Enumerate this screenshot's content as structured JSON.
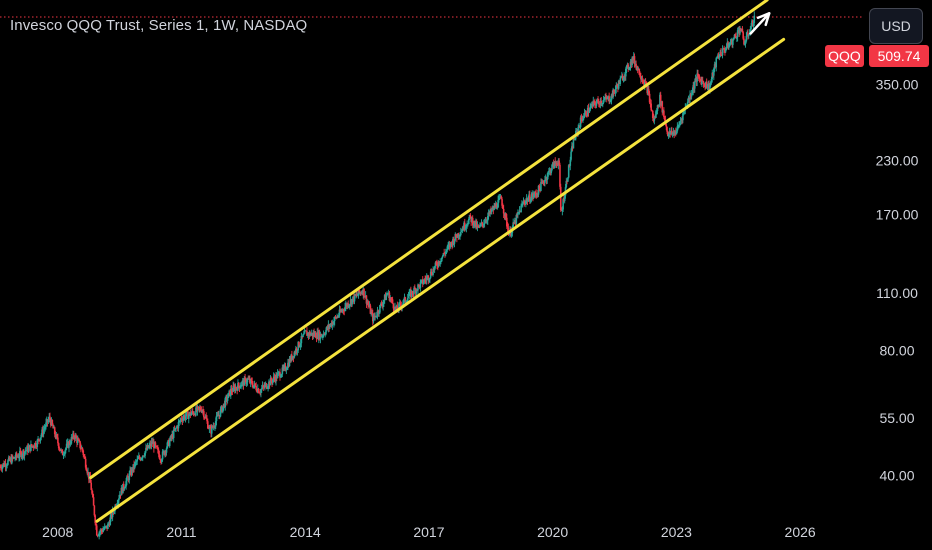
{
  "header": {
    "title": "Invesco QQQ Trust, Series 1, 1W, NASDAQ",
    "currency_button": "USD"
  },
  "price_badges": {
    "ticker": "QQQ",
    "last_price": "509.74"
  },
  "colors": {
    "background": "#000000",
    "up": "#26a69a",
    "down": "#f23645",
    "channel_lines": "#f5e33d",
    "axis_text": "#d1d4dc",
    "price_line": "#f23645",
    "arrow": "#ffffff"
  },
  "chart_data": {
    "type": "candlestick",
    "title": "Invesco QQQ Trust, Series 1, 1W, NASDAQ",
    "y_scale": "log",
    "ylim": [
      33,
      560
    ],
    "xlim": [
      2006.6,
      2027.5
    ],
    "y_ticks": [
      "350.00",
      "230.00",
      "170.00",
      "110.00",
      "80.00",
      "55.00",
      "40.00"
    ],
    "y_tick_values": [
      350,
      230,
      170,
      110,
      80,
      55,
      40
    ],
    "x_ticks": [
      "2008",
      "2011",
      "2014",
      "2017",
      "2020",
      "2023",
      "2026"
    ],
    "x_tick_values": [
      2008,
      2011,
      2014,
      2017,
      2020,
      2023,
      2026
    ],
    "grid": false,
    "last_price": 509.74,
    "price_path": [
      [
        2006.6,
        42
      ],
      [
        2007.1,
        45
      ],
      [
        2007.5,
        48
      ],
      [
        2007.8,
        55
      ],
      [
        2008.1,
        45
      ],
      [
        2008.4,
        50
      ],
      [
        2008.6,
        46
      ],
      [
        2008.8,
        38
      ],
      [
        2008.95,
        29
      ],
      [
        2009.2,
        30
      ],
      [
        2009.5,
        36
      ],
      [
        2009.9,
        43
      ],
      [
        2010.3,
        48
      ],
      [
        2010.5,
        44
      ],
      [
        2011.0,
        55
      ],
      [
        2011.5,
        58
      ],
      [
        2011.7,
        51
      ],
      [
        2012.2,
        64
      ],
      [
        2012.6,
        68
      ],
      [
        2012.9,
        64
      ],
      [
        2013.5,
        72
      ],
      [
        2014.0,
        88
      ],
      [
        2014.4,
        87
      ],
      [
        2015.0,
        103
      ],
      [
        2015.4,
        112
      ],
      [
        2015.65,
        95
      ],
      [
        2016.0,
        110
      ],
      [
        2016.2,
        100
      ],
      [
        2016.5,
        108
      ],
      [
        2017.0,
        121
      ],
      [
        2017.6,
        148
      ],
      [
        2018.0,
        167
      ],
      [
        2018.2,
        157
      ],
      [
        2018.75,
        186
      ],
      [
        2018.95,
        152
      ],
      [
        2019.3,
        183
      ],
      [
        2019.6,
        191
      ],
      [
        2020.0,
        223
      ],
      [
        2020.15,
        230
      ],
      [
        2020.2,
        170
      ],
      [
        2020.5,
        255
      ],
      [
        2020.7,
        290
      ],
      [
        2021.0,
        315
      ],
      [
        2021.4,
        325
      ],
      [
        2021.95,
        405
      ],
      [
        2022.3,
        340
      ],
      [
        2022.45,
        285
      ],
      [
        2022.6,
        325
      ],
      [
        2022.8,
        265
      ],
      [
        2023.0,
        270
      ],
      [
        2023.5,
        365
      ],
      [
        2023.8,
        345
      ],
      [
        2024.0,
        410
      ],
      [
        2024.35,
        445
      ],
      [
        2024.55,
        480
      ],
      [
        2024.65,
        440
      ],
      [
        2024.9,
        509.74
      ]
    ],
    "annotations": [
      {
        "kind": "trend_line",
        "color": "#f5e33d",
        "from": [
          2008.8,
          39.5
        ],
        "to": [
          2025.2,
          560
        ]
      },
      {
        "kind": "trend_line",
        "color": "#f5e33d",
        "from": [
          2008.95,
          31
        ],
        "to": [
          2025.6,
          450
        ]
      },
      {
        "kind": "arrow",
        "color": "#ffffff",
        "from": [
          2024.8,
          465
        ],
        "to": [
          2025.25,
          520
        ]
      }
    ]
  }
}
